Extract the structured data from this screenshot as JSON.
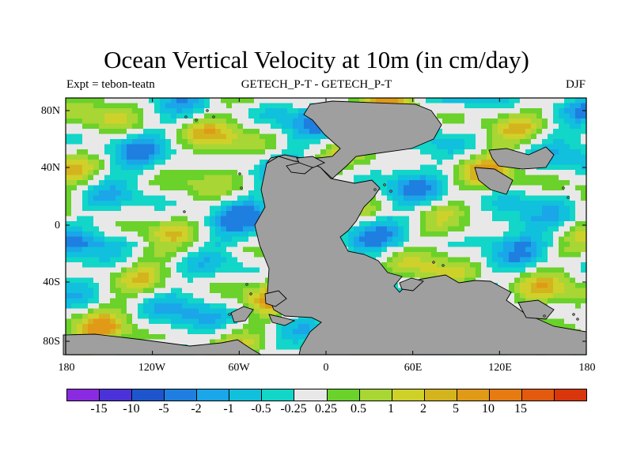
{
  "title": "Ocean Vertical Velocity at 10m (in cm/day)",
  "subtitle": {
    "left": "Expt = tebon-teatn",
    "center": "GETECH_P-T - GETECH_P-T",
    "right": "DJF"
  },
  "map": {
    "lat_labels": [
      "80N",
      "40N",
      "0",
      "40S",
      "80S"
    ],
    "lon_labels": [
      "180",
      "120W",
      "60W",
      "0",
      "60E",
      "120E",
      "180"
    ],
    "land_color": "#9f9f9f",
    "coast_color": "#000000"
  },
  "colorbar": {
    "colors": [
      "#8a2be2",
      "#4b32d8",
      "#1f55cc",
      "#1e7fe0",
      "#1aa6e8",
      "#10c0dd",
      "#12d6c8",
      "#e8e8e8",
      "#6ad22a",
      "#a8d635",
      "#cfd12b",
      "#d4b41e",
      "#e09a17",
      "#e57b12",
      "#e25a0e",
      "#d9360c"
    ],
    "labels": [
      "-15",
      "-10",
      "-5",
      "-2",
      "-1",
      "-0.5",
      "-0.25",
      "0.25",
      "0.5",
      "1",
      "2",
      "5",
      "10",
      "15"
    ]
  }
}
